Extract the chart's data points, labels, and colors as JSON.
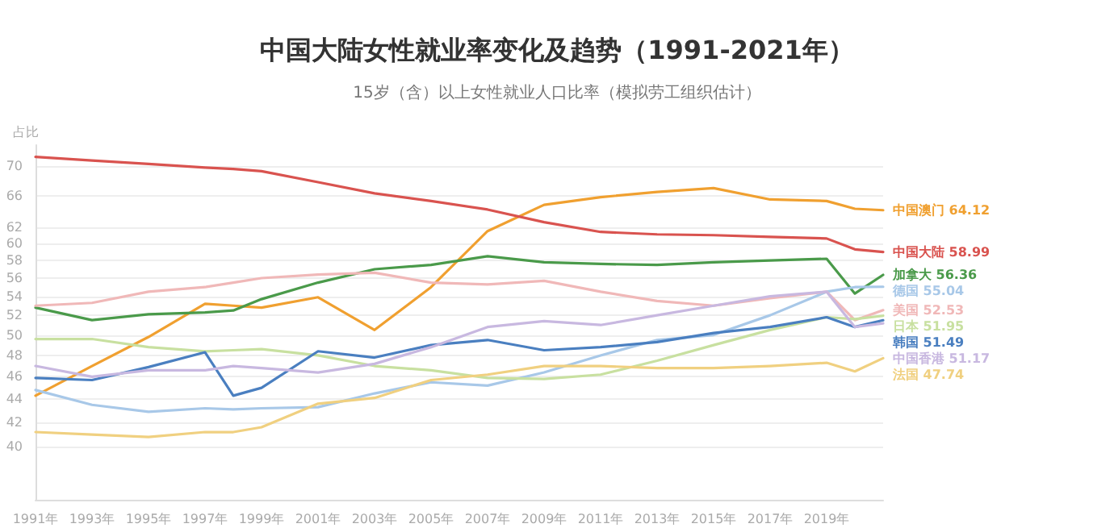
{
  "chart_data": {
    "type": "line",
    "title": "中国大陆女性就业率变化及趋势（1991-2021年）",
    "subtitle": "15岁（含）以上女性就业人口比率（模拟劳工组织估计）",
    "ylabel": "占比",
    "x": [
      1991,
      1993,
      1995,
      1997,
      1998,
      1999,
      2001,
      2003,
      2005,
      2007,
      2009,
      2011,
      2013,
      2015,
      2017,
      2019,
      2020,
      2021
    ],
    "xlim": [
      1991,
      2021
    ],
    "xticks": [
      {
        "value": 1991,
        "label": "1991年"
      },
      {
        "value": 1993,
        "label": "1993年"
      },
      {
        "value": 1995,
        "label": "1995年"
      },
      {
        "value": 1997,
        "label": "1997年"
      },
      {
        "value": 1999,
        "label": "1999年"
      },
      {
        "value": 2001,
        "label": "2001年"
      },
      {
        "value": 2003,
        "label": "2003年"
      },
      {
        "value": 2005,
        "label": "2005年"
      },
      {
        "value": 2007,
        "label": "2007年"
      },
      {
        "value": 2009,
        "label": "2009年"
      },
      {
        "value": 2011,
        "label": "2011年"
      },
      {
        "value": 2013,
        "label": "2013年"
      },
      {
        "value": 2015,
        "label": "2015年"
      },
      {
        "value": 2017,
        "label": "2017年"
      },
      {
        "value": 2019,
        "label": "2019年"
      }
    ],
    "ylim": [
      36,
      73
    ],
    "yticks": [
      40,
      42,
      44,
      46,
      48,
      50,
      52,
      54,
      56,
      58,
      60,
      62,
      66,
      70
    ],
    "log": "y",
    "grid": "y",
    "legend": false,
    "marker": "none",
    "line_style": "solid",
    "series": [
      {
        "name": "中国澳门",
        "color": "#f0a030",
        "values": [
          44.3,
          47,
          49.8,
          53.2,
          53,
          52.8,
          53.9,
          50.5,
          55,
          61.5,
          64.8,
          65.8,
          66.5,
          67,
          65.5,
          65.3,
          64.3,
          64.12
        ],
        "value_labels": [
          null,
          null,
          null,
          null,
          null,
          null,
          null,
          null,
          null,
          null,
          null,
          null,
          null,
          null,
          null,
          null,
          null,
          "64.12"
        ]
      },
      {
        "name": "中国大陆",
        "color": "#d9534f",
        "values": [
          71.3,
          70.8,
          70.3,
          69.8,
          69.6,
          69.3,
          67.8,
          66.3,
          65.3,
          64.2,
          62.6,
          61.4,
          61.1,
          61.0,
          60.8,
          60.6,
          59.3,
          58.99
        ],
        "value_labels": [
          null,
          null,
          null,
          null,
          null,
          null,
          null,
          null,
          null,
          null,
          null,
          null,
          null,
          null,
          null,
          null,
          null,
          "58.99"
        ]
      },
      {
        "name": "加拿大",
        "color": "#4a9a4a",
        "values": [
          52.8,
          51.5,
          52.1,
          52.3,
          52.5,
          53.7,
          55.5,
          57,
          57.5,
          58.5,
          57.8,
          57.6,
          57.5,
          57.8,
          58.0,
          58.2,
          54.3,
          56.36
        ],
        "value_labels": [
          null,
          null,
          null,
          null,
          null,
          null,
          null,
          null,
          null,
          null,
          null,
          null,
          null,
          null,
          null,
          null,
          null,
          "56.36"
        ]
      },
      {
        "name": "德国",
        "color": "#a8c8e8",
        "values": [
          44.8,
          43.5,
          42.9,
          43.2,
          43.1,
          43.2,
          43.3,
          44.5,
          45.5,
          45.2,
          46.4,
          48,
          49.5,
          50,
          52,
          54.5,
          55.0,
          55.04
        ],
        "value_labels": [
          null,
          null,
          null,
          null,
          null,
          null,
          null,
          null,
          null,
          null,
          null,
          null,
          null,
          null,
          null,
          null,
          null,
          "55.04"
        ]
      },
      {
        "name": "美国",
        "color": "#f0b8b8",
        "values": [
          53,
          53.3,
          54.5,
          55,
          55.5,
          56,
          56.4,
          56.6,
          55.5,
          55.3,
          55.7,
          54.5,
          53.5,
          53,
          53.8,
          54.5,
          51.5,
          52.53
        ],
        "value_labels": [
          null,
          null,
          null,
          null,
          null,
          null,
          null,
          null,
          null,
          null,
          null,
          null,
          null,
          null,
          null,
          null,
          null,
          "52.53"
        ]
      },
      {
        "name": "日本",
        "color": "#c8e0a0",
        "values": [
          49.6,
          49.6,
          48.8,
          48.4,
          48.5,
          48.6,
          48,
          47,
          46.6,
          45.9,
          45.8,
          46.2,
          47.5,
          49,
          50.5,
          51.8,
          51.6,
          51.95
        ],
        "value_labels": [
          null,
          null,
          null,
          null,
          null,
          null,
          null,
          null,
          null,
          null,
          null,
          null,
          null,
          null,
          null,
          null,
          null,
          "51.95"
        ]
      },
      {
        "name": "韩国",
        "color": "#4a7fc0",
        "values": [
          45.9,
          45.7,
          46.9,
          48.3,
          44.3,
          45,
          48.4,
          47.8,
          49,
          49.5,
          48.5,
          48.8,
          49.3,
          50.2,
          50.8,
          51.8,
          50.8,
          51.49
        ],
        "value_labels": [
          null,
          null,
          null,
          null,
          null,
          null,
          null,
          null,
          null,
          null,
          null,
          null,
          null,
          null,
          null,
          null,
          null,
          "51.49"
        ]
      },
      {
        "name": "中国香港",
        "color": "#c8b8e0",
        "values": [
          47,
          46,
          46.6,
          46.6,
          47,
          46.8,
          46.4,
          47.2,
          48.8,
          50.8,
          51.4,
          51,
          52,
          53,
          54,
          54.5,
          50.8,
          51.17
        ],
        "value_labels": [
          null,
          null,
          null,
          null,
          null,
          null,
          null,
          null,
          null,
          null,
          null,
          null,
          null,
          null,
          null,
          null,
          null,
          "51.17"
        ]
      },
      {
        "name": "法国",
        "color": "#f0d080",
        "values": [
          41.2,
          41,
          40.8,
          41.2,
          41.2,
          41.6,
          43.6,
          44.1,
          45.7,
          46.2,
          47,
          47,
          46.8,
          46.8,
          47,
          47.3,
          46.5,
          47.74
        ],
        "value_labels": [
          null,
          null,
          null,
          null,
          null,
          null,
          null,
          null,
          null,
          null,
          null,
          null,
          null,
          null,
          null,
          null,
          null,
          "47.74"
        ]
      }
    ]
  }
}
